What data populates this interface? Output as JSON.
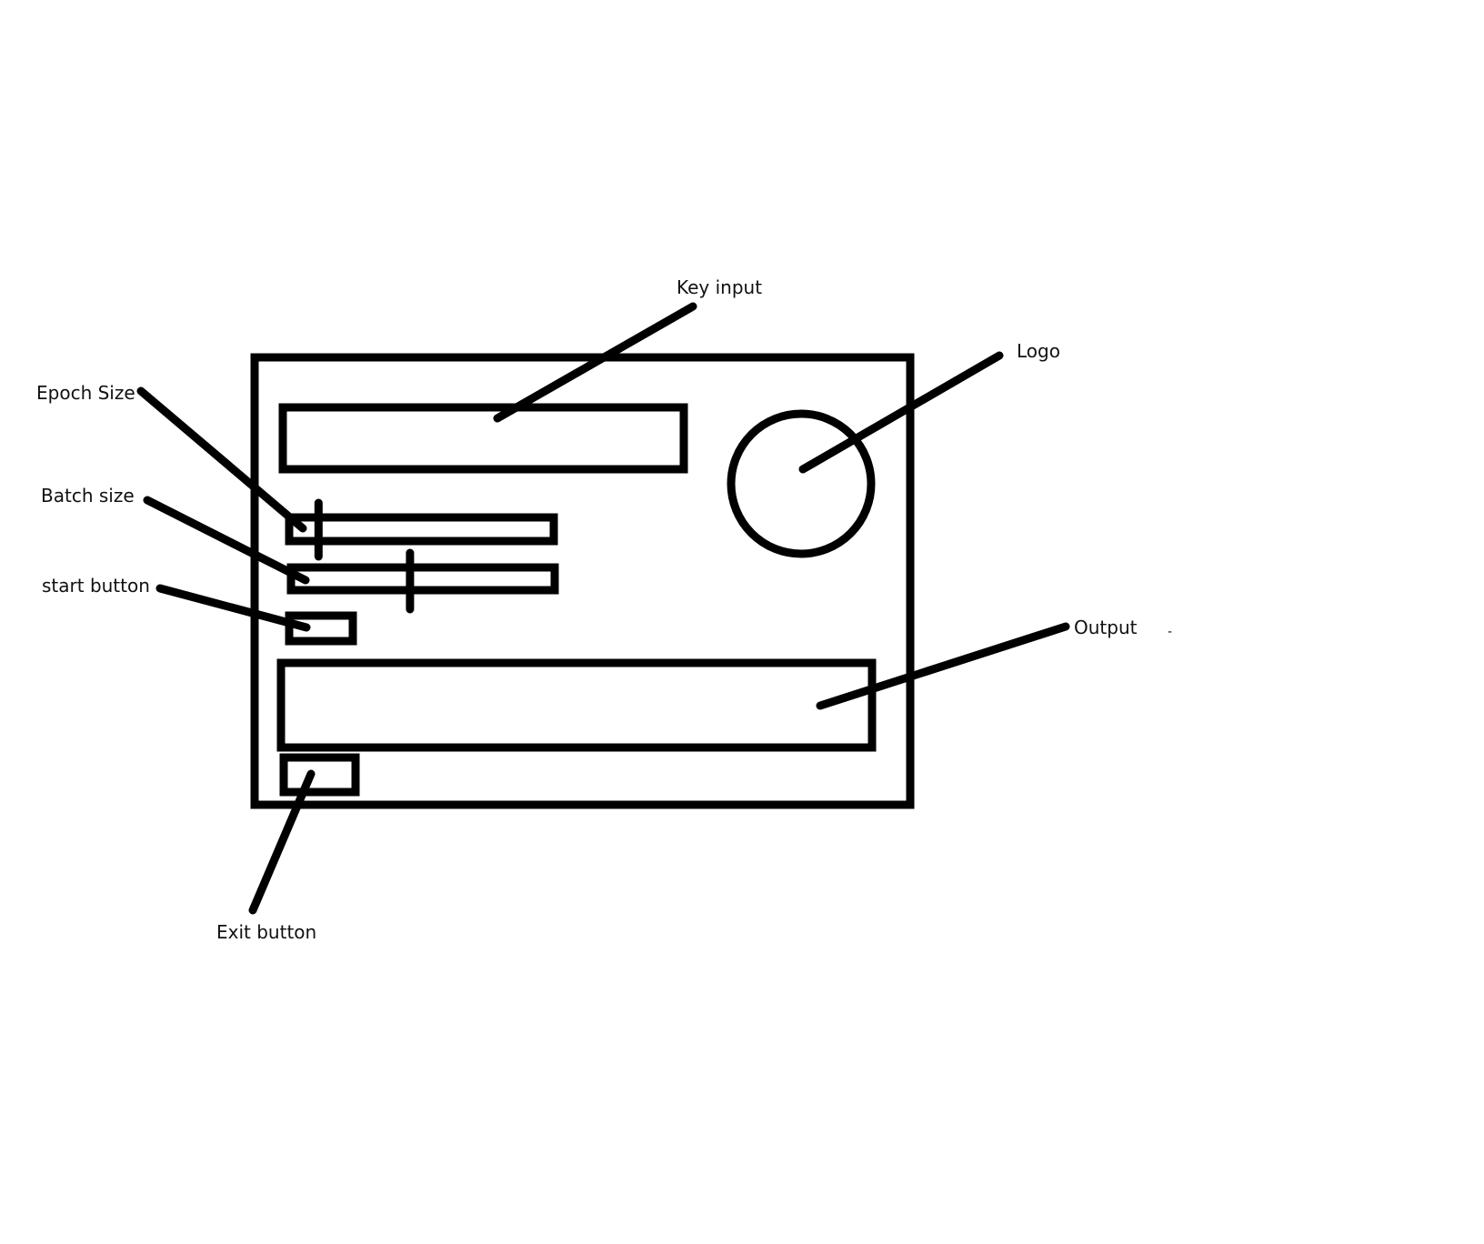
{
  "colors": {
    "ink": "#000000",
    "background": "#ffffff",
    "text": "#111111"
  },
  "labels": {
    "key_input": "Key input",
    "logo": "Logo",
    "epoch_size": "Epoch Size",
    "batch_size": "Batch size",
    "start_button": "start button",
    "output": "Output",
    "exit_button": "Exit button",
    "stray_mark": "-"
  },
  "sliders": {
    "epoch_size": {
      "level": 0.1
    },
    "batch_size": {
      "level": 0.45
    }
  }
}
